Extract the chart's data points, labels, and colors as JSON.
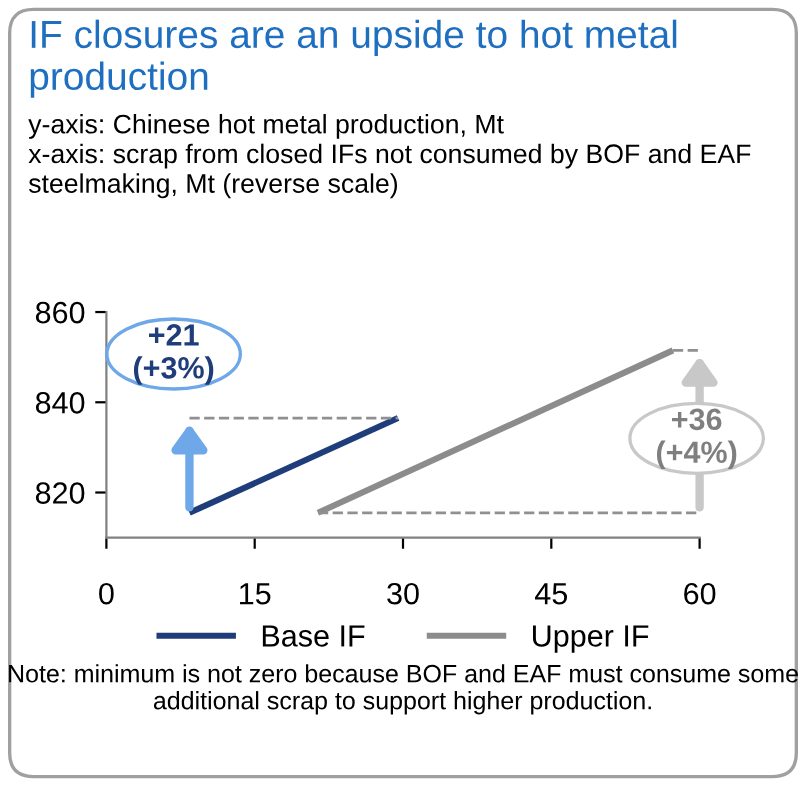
{
  "chart_data": {
    "type": "line",
    "title": "IF closures are an upside to hot metal production",
    "subtitle": "y-axis: Chinese hot metal production, Mt\nx-axis: scrap from closed IFs not consumed by BOF and EAF steelmaking, Mt (reverse scale)",
    "series": [
      {
        "name": "Base IF",
        "color": "#1f3d7a",
        "x": [
          8.4,
          29.5
        ],
        "values": [
          815.5,
          836.5
        ]
      },
      {
        "name": "Upper IF",
        "color": "#8c8c8c",
        "x": [
          21.4,
          57.3
        ],
        "values": [
          815.5,
          851.5
        ]
      },
      {
        "type": "line",
        "line_style": "dashed",
        "color": "#909090",
        "x": [
          8.4,
          29.5
        ],
        "values": [
          836.5,
          836.5
        ]
      },
      {
        "type": "line",
        "line_style": "dashed",
        "color": "#909090",
        "x": [
          21.4,
          60
        ],
        "values": [
          815.5,
          815.5
        ]
      },
      {
        "type": "line",
        "line_style": "dashed",
        "color": "#909090",
        "x": [
          57.3,
          60
        ],
        "values": [
          851.5,
          851.5
        ]
      }
    ],
    "annotations": [
      {
        "text": "+21\n(+3%)",
        "x": 8.4,
        "y": 836.5
      },
      {
        "text": "+36\n(+4%)",
        "x": 60,
        "y": 851.5
      },
      "Note: minimum is not zero because BOF and EAF must consume some additional scrap to support higher production."
    ],
    "xlim": [
      0,
      60
    ],
    "xticks": [
      0,
      15,
      30,
      45,
      60
    ],
    "ylim": [
      810,
      860
    ],
    "yticks": [
      820,
      840,
      860
    ],
    "grid": false,
    "legend": "bottom",
    "marker": "none",
    "line_style": "solid"
  }
}
